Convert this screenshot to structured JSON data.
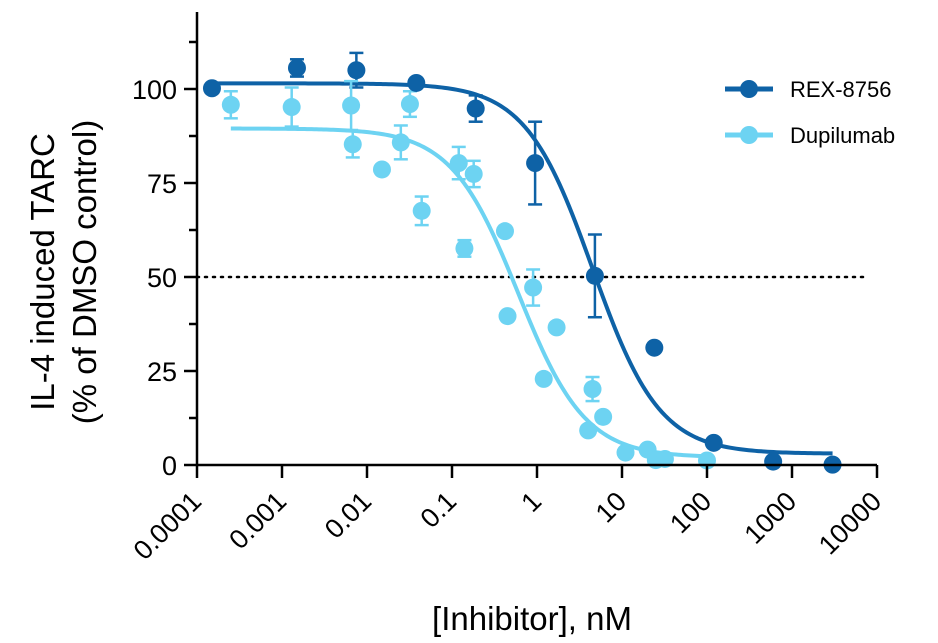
{
  "chart_data": {
    "type": "scatter",
    "xlabel": "[Inhibitor], nM",
    "ylabel_line1": "IL-4 induced TARC",
    "ylabel_line2": "(% of DMSO control)",
    "x_scale": "log",
    "xlim": [
      0.0001,
      10000
    ],
    "ylim": [
      0,
      120
    ],
    "x_ticks": [
      {
        "value": 0.0001,
        "label": "0.0001"
      },
      {
        "value": 0.001,
        "label": "0.001"
      },
      {
        "value": 0.01,
        "label": "0.01"
      },
      {
        "value": 0.1,
        "label": "0.1"
      },
      {
        "value": 1,
        "label": "1"
      },
      {
        "value": 10,
        "label": "10"
      },
      {
        "value": 100,
        "label": "100"
      },
      {
        "value": 1000,
        "label": "1000"
      },
      {
        "value": 10000,
        "label": "10000"
      }
    ],
    "y_ticks": [
      {
        "value": 0,
        "label": "0"
      },
      {
        "value": 25,
        "label": "25"
      },
      {
        "value": 50,
        "label": "50"
      },
      {
        "value": 75,
        "label": "75"
      },
      {
        "value": 100,
        "label": "100"
      }
    ],
    "reference_line": {
      "y": 50,
      "style": "dotted"
    },
    "legend_position": "top-right",
    "series": [
      {
        "name": "REX-8756",
        "color": "#0e62a6",
        "points": [
          {
            "x": 0.00015,
            "y": 100.2,
            "err": 0
          },
          {
            "x": 0.0015,
            "y": 105.6,
            "err": 2.3
          },
          {
            "x": 0.0075,
            "y": 105.0,
            "err": 4.6
          },
          {
            "x": 0.038,
            "y": 101.6,
            "err": 0
          },
          {
            "x": 0.19,
            "y": 94.8,
            "err": 3.5
          },
          {
            "x": 0.95,
            "y": 80.3,
            "err": 11
          },
          {
            "x": 4.8,
            "y": 50.3,
            "err": 11
          },
          {
            "x": 24,
            "y": 31.2,
            "err": 0
          },
          {
            "x": 120,
            "y": 5.9,
            "err": 0
          },
          {
            "x": 600,
            "y": 0.9,
            "err": 0
          },
          {
            "x": 3000,
            "y": 0.1,
            "err": 0
          }
        ],
        "fit": {
          "top": 101.5,
          "bottom": 3,
          "ec50": 4.5,
          "hill": 1.1,
          "x_from": 0.00015,
          "x_to": 3000
        }
      },
      {
        "name": "Dupilumab",
        "color": "#6dd3f2",
        "points": [
          {
            "x": 0.00025,
            "y": 95.8,
            "err": 3.6
          },
          {
            "x": 0.0013,
            "y": 95.2,
            "err": 5.2
          },
          {
            "x": 0.0065,
            "y": 95.6,
            "err": 6.5
          },
          {
            "x": 0.0068,
            "y": 85.3,
            "err": 3.5
          },
          {
            "x": 0.015,
            "y": 78.6,
            "err": 0
          },
          {
            "x": 0.025,
            "y": 85.8,
            "err": 4.5
          },
          {
            "x": 0.032,
            "y": 96.0,
            "err": 3.4
          },
          {
            "x": 0.044,
            "y": 67.6,
            "err": 3.8
          },
          {
            "x": 0.12,
            "y": 80.3,
            "err": 4.3
          },
          {
            "x": 0.14,
            "y": 57.6,
            "err": 2.2
          },
          {
            "x": 0.18,
            "y": 77.4,
            "err": 3.5
          },
          {
            "x": 0.42,
            "y": 62.2,
            "err": 0
          },
          {
            "x": 0.45,
            "y": 39.6,
            "err": 0
          },
          {
            "x": 0.9,
            "y": 47.2,
            "err": 4.8
          },
          {
            "x": 1.2,
            "y": 22.9,
            "err": 0
          },
          {
            "x": 1.7,
            "y": 36.6,
            "err": 0
          },
          {
            "x": 4.0,
            "y": 9.2,
            "err": 0
          },
          {
            "x": 4.5,
            "y": 20.2,
            "err": 3.2
          },
          {
            "x": 6.0,
            "y": 12.8,
            "err": 0
          },
          {
            "x": 11,
            "y": 3.3,
            "err": 0
          },
          {
            "x": 20,
            "y": 4.1,
            "err": 0
          },
          {
            "x": 25,
            "y": 1.3,
            "err": 0
          },
          {
            "x": 32,
            "y": 1.6,
            "err": 0
          },
          {
            "x": 100,
            "y": 1.2,
            "err": 0
          }
        ],
        "fit": {
          "top": 89.5,
          "bottom": 2,
          "ec50": 0.6,
          "hill": 1.1,
          "x_from": 0.00025,
          "x_to": 100
        }
      }
    ]
  }
}
